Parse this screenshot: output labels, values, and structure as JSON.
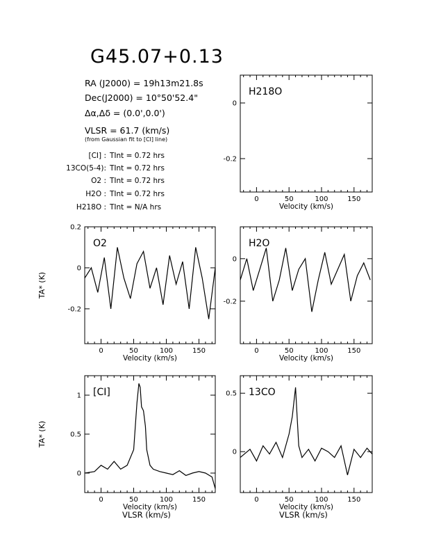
{
  "title": "G45.07+0.13",
  "info": {
    "ra": "RA (J2000) =  19h13m21.8s",
    "dec": "Dec(J2000) =  10°50'52.4\"",
    "offset": "Δα,Δδ = (0.0',0.0')",
    "vlsr": "VLSR = 61.7 (km/s)",
    "vlsr_note": "(from Gaussian fit to [CI] line)"
  },
  "integration_times": [
    {
      "label": "[CI] :",
      "value": "TInt = 0.72 hrs"
    },
    {
      "label": "13CO(5-4):",
      "value": "TInt = 0.72 hrs"
    },
    {
      "label": "O2 :",
      "value": "TInt = 0.72 hrs"
    },
    {
      "label": "H2O :",
      "value": "TInt = 0.72 hrs"
    },
    {
      "label": "H218O :",
      "value": "TInt = N/A hrs"
    }
  ],
  "chart_data": [
    {
      "id": "h218o",
      "type": "line",
      "line_label": "H218O",
      "xlabel": "Velocity (km/s)",
      "ylabel": "",
      "xlim": [
        -25,
        178
      ],
      "ylim": [
        -0.32,
        0.1
      ],
      "xticks": [
        0,
        50,
        100,
        150
      ],
      "yticks": [
        0,
        -0.2
      ],
      "ytick_labels": [
        "0",
        "-0.2"
      ],
      "x": [],
      "y": []
    },
    {
      "id": "o2",
      "type": "line",
      "line_label": "O2",
      "xlabel": "Velocity (km/s)",
      "ylabel": "TA* (K)",
      "xlim": [
        -25,
        175
      ],
      "ylim": [
        -0.37,
        0.2
      ],
      "xticks": [
        0,
        50,
        100,
        150
      ],
      "yticks": [
        0.2,
        0,
        -0.2
      ],
      "ytick_labels": [
        "0.2",
        "0",
        "-0.2"
      ],
      "x": [
        -25,
        -15,
        -5,
        5,
        15,
        25,
        35,
        45,
        55,
        65,
        75,
        85,
        95,
        105,
        115,
        125,
        135,
        145,
        155,
        165,
        175
      ],
      "y": [
        -0.05,
        0.0,
        -0.12,
        0.05,
        -0.2,
        0.1,
        -0.05,
        -0.15,
        0.02,
        0.08,
        -0.1,
        0.0,
        -0.18,
        0.06,
        -0.08,
        0.03,
        -0.2,
        0.1,
        -0.05,
        -0.25,
        0.0
      ]
    },
    {
      "id": "h2o",
      "type": "line",
      "line_label": "H2O",
      "xlabel": "Velocity (km/s)",
      "ylabel": "",
      "xlim": [
        -25,
        178
      ],
      "ylim": [
        -0.4,
        0.15
      ],
      "xticks": [
        0,
        50,
        100,
        150
      ],
      "yticks": [
        0,
        -0.2
      ],
      "ytick_labels": [
        "0",
        "-0.2"
      ],
      "x": [
        -25,
        -15,
        -5,
        5,
        15,
        25,
        35,
        45,
        55,
        65,
        75,
        85,
        95,
        105,
        115,
        125,
        135,
        145,
        155,
        165,
        175
      ],
      "y": [
        -0.1,
        0.0,
        -0.15,
        -0.05,
        0.05,
        -0.2,
        -0.1,
        0.05,
        -0.15,
        -0.05,
        0.0,
        -0.25,
        -0.1,
        0.03,
        -0.12,
        -0.05,
        0.02,
        -0.2,
        -0.08,
        -0.02,
        -0.1
      ]
    },
    {
      "id": "ci",
      "type": "line",
      "line_label": "[CI]",
      "xlabel": "Velocity (km/s)",
      "ylabel": "TA* (K)",
      "xlim": [
        -25,
        175
      ],
      "ylim": [
        -0.25,
        1.25
      ],
      "xticks": [
        0,
        50,
        100,
        150
      ],
      "yticks": [
        1,
        0.5,
        0
      ],
      "ytick_labels": [
        "1",
        "0.5",
        "0"
      ],
      "x": [
        -25,
        -10,
        0,
        10,
        20,
        30,
        40,
        50,
        55,
        58,
        60,
        62,
        65,
        68,
        70,
        75,
        80,
        90,
        100,
        110,
        120,
        130,
        140,
        150,
        160,
        170,
        175
      ],
      "y": [
        0.0,
        0.02,
        0.1,
        0.05,
        0.15,
        0.05,
        0.1,
        0.3,
        0.9,
        1.15,
        1.1,
        0.85,
        0.8,
        0.6,
        0.3,
        0.1,
        0.05,
        0.02,
        0.0,
        -0.02,
        0.03,
        -0.03,
        0.0,
        0.02,
        0.0,
        -0.05,
        -0.2
      ]
    },
    {
      "id": "13co",
      "type": "line",
      "line_label": "13CO",
      "xlabel": "Velocity (km/s)",
      "ylabel": "",
      "xlim": [
        -25,
        178
      ],
      "ylim": [
        -0.35,
        0.65
      ],
      "xticks": [
        0,
        50,
        100,
        150
      ],
      "yticks": [
        0.5,
        0
      ],
      "ytick_labels": [
        "0.5",
        "0"
      ],
      "x": [
        -25,
        -10,
        0,
        10,
        20,
        30,
        40,
        50,
        55,
        58,
        60,
        62,
        65,
        70,
        80,
        90,
        100,
        110,
        120,
        130,
        140,
        150,
        160,
        170,
        178
      ],
      "y": [
        -0.05,
        0.02,
        -0.08,
        0.05,
        -0.02,
        0.08,
        -0.05,
        0.15,
        0.3,
        0.45,
        0.55,
        0.35,
        0.05,
        -0.05,
        0.02,
        -0.08,
        0.03,
        0.0,
        -0.05,
        0.05,
        -0.2,
        0.02,
        -0.05,
        0.03,
        -0.02
      ]
    }
  ],
  "footer": {
    "x_label_left": "VLSR (km/s)",
    "x_label_right": "VLSR (km/s)"
  }
}
